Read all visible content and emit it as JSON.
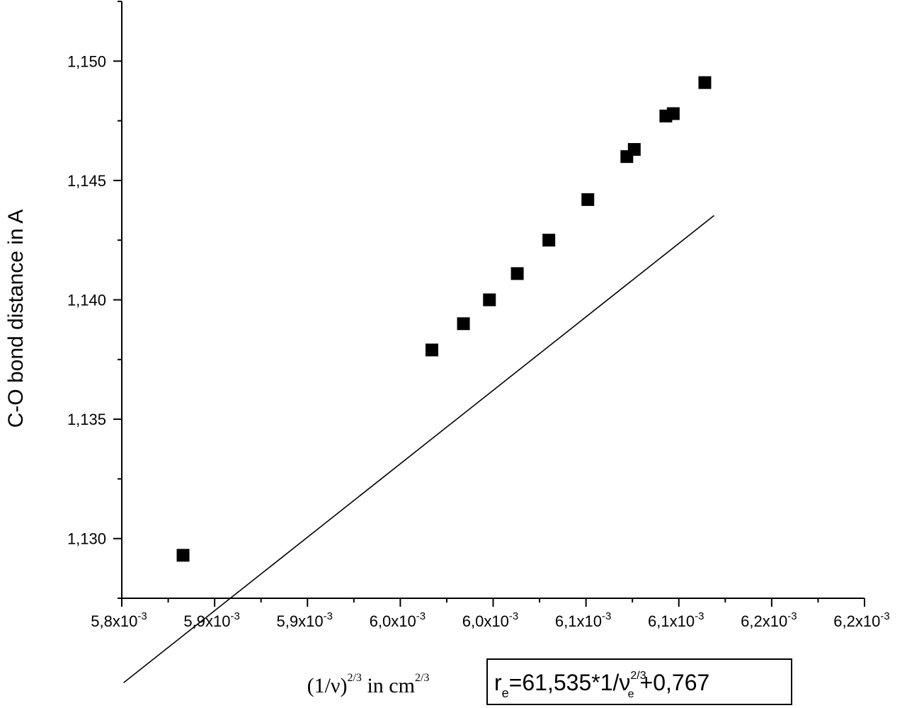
{
  "chart_data": {
    "type": "scatter",
    "xlabel": {
      "base": "(1/ν)",
      "exp": "2/3",
      "mid": " in cm",
      "unit_exp": "2/3"
    },
    "ylabel": "C-O bond distance in A",
    "xlim": [
      0.0058,
      0.0062
    ],
    "ylim": [
      1.1275,
      1.1525
    ],
    "x_ticks": [
      0.0058,
      0.00585,
      0.0059,
      0.00595,
      0.006,
      0.00605,
      0.0061,
      0.00615,
      0.0062
    ],
    "x_tick_labels": [
      "5,8x10",
      "5,9x10",
      "5,9x10",
      "6,0x10",
      "6,0x10",
      "6,1x10",
      "6,1x10",
      "6,2x10",
      "6,2x10"
    ],
    "x_tick_exp": "-3",
    "y_ticks": [
      1.13,
      1.135,
      1.14,
      1.145,
      1.15
    ],
    "y_tick_labels": [
      "1,130",
      "1,135",
      "1,140",
      "1,145",
      "1,150"
    ],
    "series": [
      {
        "marker": "square",
        "color": "#000000",
        "x": [
          0.005833,
          0.005967,
          0.005984,
          0.005998,
          0.006013,
          0.00603,
          0.006051,
          0.006072,
          0.006076,
          0.006093,
          0.006097,
          0.006114
        ],
        "y": [
          1.1293,
          1.1379,
          1.139,
          1.14,
          1.1411,
          1.1425,
          1.1442,
          1.146,
          1.1463,
          1.1477,
          1.1478,
          1.1491
        ]
      }
    ],
    "fit_line": {
      "slope": 61.535,
      "intercept": 0.767,
      "x_range": [
        0.005801,
        0.006119
      ]
    },
    "equation": {
      "r": "r",
      "r_sub": "e",
      "part1": "=61,535*1/ν",
      "nu_sub": "e",
      "nu_exp": "2/3",
      "part2": "+0,767"
    }
  }
}
